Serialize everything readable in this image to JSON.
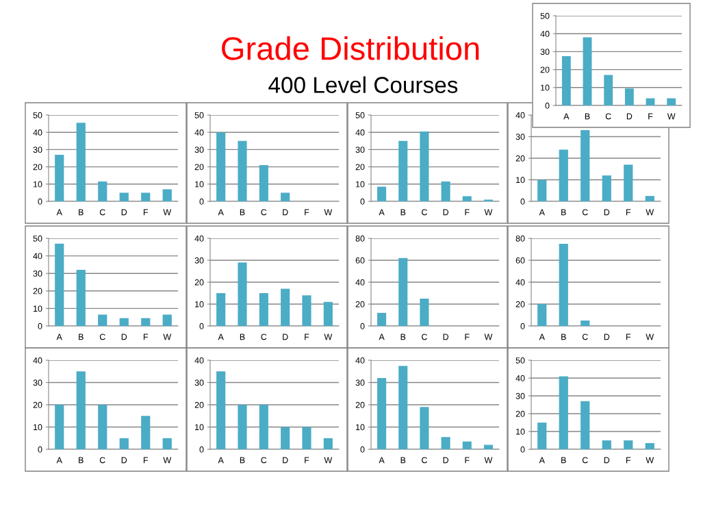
{
  "chart_data": [
    {
      "type": "bar",
      "title": "Grade Distribution",
      "subtitle": "400 Level Courses",
      "categories": [
        "A",
        "B",
        "C",
        "D",
        "F",
        "W"
      ],
      "values": [
        27.5,
        38,
        17,
        9.5,
        4,
        4
      ],
      "color": "#4bacc6",
      "ylim": [
        0,
        50
      ],
      "yticks": [
        0,
        10,
        20,
        30,
        40,
        50
      ],
      "grid": "y"
    },
    {
      "type": "bar",
      "categories": [
        "A",
        "B",
        "C",
        "D",
        "F",
        "W"
      ],
      "values": [
        27,
        45.5,
        11.5,
        5,
        5,
        7
      ],
      "color": "#4bacc6",
      "ylim": [
        0,
        50
      ],
      "yticks": [
        0,
        10,
        20,
        30,
        40,
        50
      ],
      "grid": "y"
    },
    {
      "type": "bar",
      "categories": [
        "A",
        "B",
        "C",
        "D",
        "F",
        "W"
      ],
      "values": [
        40,
        35,
        21,
        5,
        0,
        0
      ],
      "color": "#4bacc6",
      "ylim": [
        0,
        50
      ],
      "yticks": [
        0,
        10,
        20,
        30,
        40,
        50
      ],
      "grid": "y"
    },
    {
      "type": "bar",
      "categories": [
        "A",
        "B",
        "C",
        "D",
        "F",
        "W"
      ],
      "values": [
        8.5,
        35,
        40.5,
        11.5,
        3,
        1
      ],
      "color": "#4bacc6",
      "ylim": [
        0,
        50
      ],
      "yticks": [
        0,
        10,
        20,
        30,
        40,
        50
      ],
      "grid": "y"
    },
    {
      "type": "bar",
      "categories": [
        "A",
        "B",
        "C",
        "D",
        "F",
        "W"
      ],
      "values": [
        10,
        24,
        33,
        12,
        17,
        2.5
      ],
      "color": "#4bacc6",
      "ylim": [
        0,
        40
      ],
      "yticks": [
        0,
        10,
        20,
        30,
        40
      ],
      "grid": "y"
    },
    {
      "type": "bar",
      "categories": [
        "A",
        "B",
        "C",
        "D",
        "F",
        "W"
      ],
      "values": [
        47,
        32,
        6.5,
        4.5,
        4.5,
        6.5
      ],
      "color": "#4bacc6",
      "ylim": [
        0,
        50
      ],
      "yticks": [
        0,
        10,
        20,
        30,
        40,
        50
      ],
      "grid": "y"
    },
    {
      "type": "bar",
      "categories": [
        "A",
        "B",
        "C",
        "D",
        "F",
        "W"
      ],
      "values": [
        15,
        29,
        15,
        17,
        14,
        11
      ],
      "color": "#4bacc6",
      "ylim": [
        0,
        40
      ],
      "yticks": [
        0,
        10,
        20,
        30,
        40
      ],
      "grid": "y"
    },
    {
      "type": "bar",
      "categories": [
        "A",
        "B",
        "C",
        "D",
        "F",
        "W"
      ],
      "values": [
        12,
        62,
        25,
        0,
        0,
        0
      ],
      "color": "#4bacc6",
      "ylim": [
        0,
        80
      ],
      "yticks": [
        0,
        20,
        40,
        60,
        80
      ],
      "grid": "y"
    },
    {
      "type": "bar",
      "categories": [
        "A",
        "B",
        "C",
        "D",
        "F",
        "W"
      ],
      "values": [
        20,
        75,
        5,
        0,
        0,
        0
      ],
      "color": "#4bacc6",
      "ylim": [
        0,
        80
      ],
      "yticks": [
        0,
        20,
        40,
        60,
        80
      ],
      "grid": "y"
    },
    {
      "type": "bar",
      "categories": [
        "A",
        "B",
        "C",
        "D",
        "F",
        "W"
      ],
      "values": [
        20,
        35,
        20,
        5,
        15,
        5
      ],
      "color": "#4bacc6",
      "ylim": [
        0,
        40
      ],
      "yticks": [
        0,
        10,
        20,
        30,
        40
      ],
      "grid": "y"
    },
    {
      "type": "bar",
      "categories": [
        "A",
        "B",
        "C",
        "D",
        "F",
        "W"
      ],
      "values": [
        35,
        20,
        20,
        10,
        10,
        5
      ],
      "color": "#4bacc6",
      "ylim": [
        0,
        40
      ],
      "yticks": [
        0,
        10,
        20,
        30,
        40
      ],
      "grid": "y"
    },
    {
      "type": "bar",
      "categories": [
        "A",
        "B",
        "C",
        "D",
        "F",
        "W"
      ],
      "values": [
        32,
        37.5,
        19,
        5.5,
        3.5,
        2
      ],
      "color": "#4bacc6",
      "ylim": [
        0,
        40
      ],
      "yticks": [
        0,
        10,
        20,
        30,
        40
      ],
      "grid": "y"
    },
    {
      "type": "bar",
      "categories": [
        "A",
        "B",
        "C",
        "D",
        "F",
        "W"
      ],
      "values": [
        15,
        41,
        27,
        5,
        5,
        3.5
      ],
      "color": "#4bacc6",
      "ylim": [
        0,
        50
      ],
      "yticks": [
        0,
        10,
        20,
        30,
        40,
        50
      ],
      "grid": "y"
    }
  ]
}
